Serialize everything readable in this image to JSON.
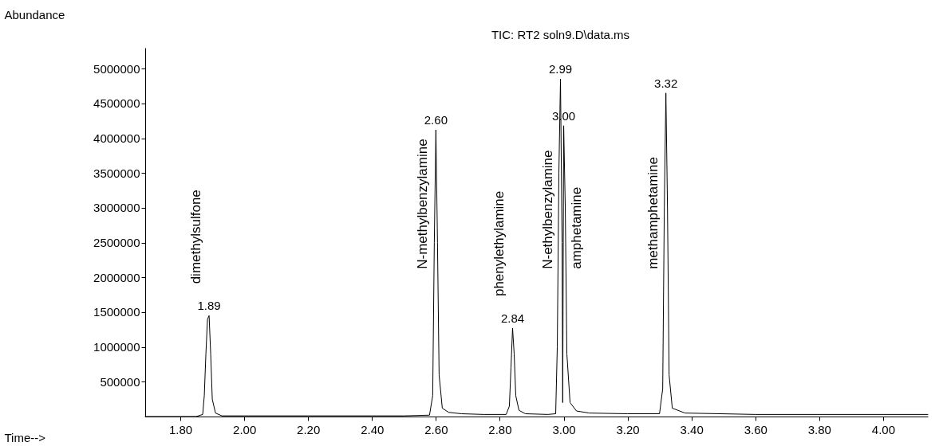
{
  "chart_data": {
    "type": "line",
    "title": "TIC: RT2 soln9.D\\data.ms",
    "xlabel": "Time-->",
    "ylabel": "Abundance",
    "xlim": [
      1.69,
      4.14
    ],
    "ylim": [
      0,
      5300000
    ],
    "xticks": [
      {
        "value": 1.8,
        "label": "1.80"
      },
      {
        "value": 2.0,
        "label": "2.00"
      },
      {
        "value": 2.2,
        "label": "2.20"
      },
      {
        "value": 2.4,
        "label": "2.40"
      },
      {
        "value": 2.6,
        "label": "2.60"
      },
      {
        "value": 2.8,
        "label": "2.80"
      },
      {
        "value": 3.0,
        "label": "3.00"
      },
      {
        "value": 3.2,
        "label": "3.20"
      },
      {
        "value": 3.4,
        "label": "3.40"
      },
      {
        "value": 3.6,
        "label": "3.60"
      },
      {
        "value": 3.8,
        "label": "3.80"
      },
      {
        "value": 4.0,
        "label": "4.00"
      }
    ],
    "yticks": [
      500000,
      1000000,
      1500000,
      2000000,
      2500000,
      3000000,
      3500000,
      4000000,
      4500000,
      5000000
    ],
    "grid": false,
    "marker": "none",
    "line_style": "solid",
    "series": [
      {
        "color": "#000000",
        "x": [
          1.69,
          1.85,
          1.87,
          1.875,
          1.88,
          1.885,
          1.89,
          1.895,
          1.9,
          1.91,
          1.93,
          2.2,
          2.5,
          2.58,
          2.59,
          2.595,
          2.6,
          2.605,
          2.61,
          2.62,
          2.64,
          2.68,
          2.75,
          2.82,
          2.83,
          2.835,
          2.84,
          2.845,
          2.85,
          2.86,
          2.88,
          2.95,
          2.975,
          2.98,
          2.985,
          2.99,
          2.995,
          2.997,
          3.0,
          3.005,
          3.01,
          3.02,
          3.04,
          3.08,
          3.2,
          3.3,
          3.31,
          3.315,
          3.32,
          3.325,
          3.33,
          3.34,
          3.38,
          3.6,
          4.14
        ],
        "values": [
          0,
          0,
          30000,
          300000,
          900000,
          1400000,
          1450000,
          900000,
          250000,
          50000,
          10000,
          10000,
          10000,
          20000,
          300000,
          2500000,
          4120000,
          2500000,
          600000,
          120000,
          60000,
          40000,
          30000,
          30000,
          150000,
          700000,
          1270000,
          900000,
          300000,
          90000,
          40000,
          30000,
          40000,
          1000000,
          3500000,
          4850000,
          2500000,
          200000,
          4180000,
          3000000,
          900000,
          200000,
          80000,
          50000,
          40000,
          40000,
          400000,
          3000000,
          4650000,
          3000000,
          600000,
          120000,
          50000,
          30000,
          30000
        ]
      }
    ],
    "annotations": [
      "dimethylsulfone",
      "N-methylbenzylamine",
      "phenylethylamine",
      "N-ethylbenzylamine",
      "amphetamine",
      "methamphetamine",
      {
        "text": "1.89",
        "x": 1.89,
        "y": 1450000
      },
      {
        "text": "2.60",
        "x": 2.6,
        "y": 4120000
      },
      {
        "text": "2.84",
        "x": 2.84,
        "y": 1270000
      },
      {
        "text": "2.99",
        "x": 2.99,
        "y": 4850000
      },
      {
        "text": "3.00",
        "x": 3.0,
        "y": 4180000
      },
      {
        "text": "3.32",
        "x": 3.32,
        "y": 4650000
      }
    ]
  }
}
